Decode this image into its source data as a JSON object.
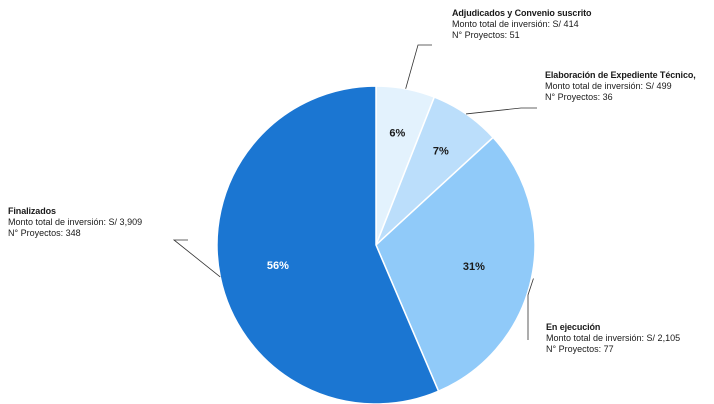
{
  "colors": {
    "finalizados": "#1b76d2",
    "ejecucion": "#90caf9",
    "expediente": "#bbdefb",
    "adjudicados": "#e3f2fd",
    "leader": "#333333"
  },
  "chart_data": {
    "type": "pie",
    "title": "",
    "slices": [
      {
        "name": "Adjudicados y Convenio suscrito",
        "value": 414,
        "percent": "6%",
        "projects": 51
      },
      {
        "name": "Elaboración de Expediente Técnico,",
        "value": 499,
        "percent": "7%",
        "projects": 36
      },
      {
        "name": "En ejecución",
        "value": 2105,
        "percent": "31%",
        "projects": 77
      },
      {
        "name": "Finalizados",
        "value": 3909,
        "percent": "56%",
        "projects": 348
      }
    ]
  },
  "labels": {
    "adjudicados": {
      "title": "Adjudicados y Convenio suscrito",
      "monto": "Monto total de inversión: S/ 414",
      "proyectos": "N° Proyectos: 51"
    },
    "expediente": {
      "title": "Elaboración de Expediente Técnico,",
      "monto": "Monto total de inversión: S/ 499",
      "proyectos": "N° Proyectos: 36"
    },
    "ejecucion": {
      "title": "En ejecución",
      "monto": "Monto total de inversión: S/ 2,105",
      "proyectos": "N° Proyectos: 77"
    },
    "finalizados": {
      "title": "Finalizados",
      "monto": "Monto total de inversión: S/ 3,909",
      "proyectos": "N° Proyectos: 348"
    }
  }
}
